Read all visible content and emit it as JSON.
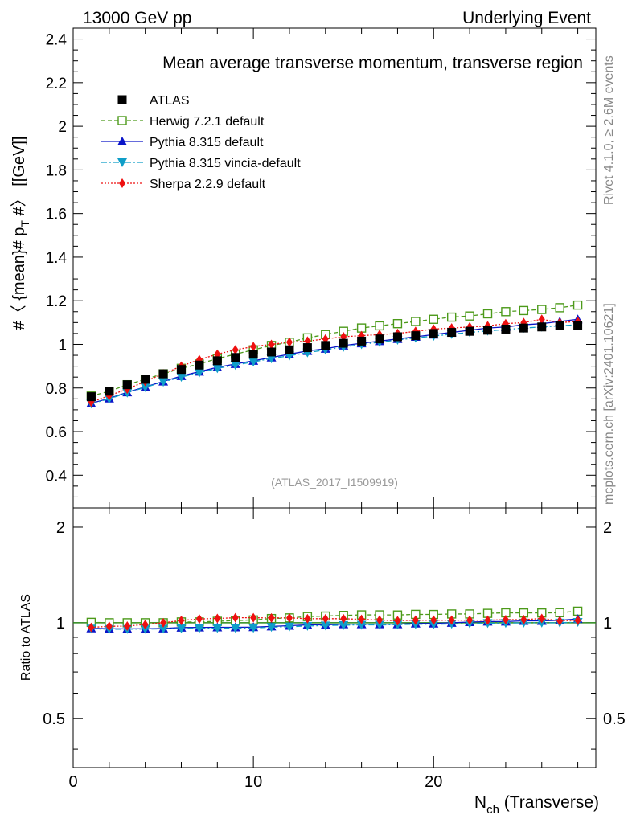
{
  "header": {
    "left": "13000 GeV pp",
    "right": "Underlying Event"
  },
  "side": {
    "rivet": "Rivet 4.1.0, ≥ 2.6M events",
    "mcplots": "mcplots.cern.ch [arXiv:2401.10621]"
  },
  "chart_data": {
    "type": "line",
    "title": "Mean average transverse momentum, transverse region",
    "analysis_id": "(ATLAS_2017_I1509919)",
    "ylabel": "#〈 {mean}# p_T #〉 [[GeV]]",
    "ylabel_parts": {
      "pre": "#〈 {mean}# p",
      "sub": "T",
      "post": " #〉 [[GeV]]"
    },
    "xlabel_parts": {
      "pre": "N",
      "sub": "ch",
      "post": " (Transverse)"
    },
    "ratio_ylabel": "Ratio to ATLAS",
    "xlim": [
      0,
      29
    ],
    "ylim": [
      0.25,
      2.45
    ],
    "ratio_ylim": [
      0.35,
      2.3
    ],
    "x_ticks": [
      "0",
      "10",
      "20"
    ],
    "y_ticks": [
      "0.4",
      "0.6",
      "0.8",
      "1",
      "1.2",
      "1.4",
      "1.6",
      "1.8",
      "2",
      "2.2",
      "2.4"
    ],
    "ratio_ticks": [
      "0.5",
      "1",
      "2"
    ],
    "x": [
      1,
      2,
      3,
      4,
      5,
      6,
      7,
      8,
      9,
      10,
      11,
      12,
      13,
      14,
      15,
      16,
      17,
      18,
      19,
      20,
      21,
      22,
      23,
      24,
      25,
      26,
      27,
      28
    ],
    "series": [
      {
        "name": "ATLAS",
        "color": "#000000",
        "marker": "square-filled",
        "line": "none",
        "values": [
          0.76,
          0.785,
          0.815,
          0.84,
          0.865,
          0.885,
          0.905,
          0.925,
          0.94,
          0.955,
          0.965,
          0.975,
          0.985,
          0.995,
          1.005,
          1.015,
          1.025,
          1.035,
          1.04,
          1.05,
          1.055,
          1.06,
          1.065,
          1.07,
          1.075,
          1.08,
          1.085,
          1.085
        ]
      },
      {
        "name": "Herwig 7.2.1 default",
        "color": "#4c9a1a",
        "marker": "square-open",
        "line": "dashed",
        "values": [
          0.763,
          0.785,
          0.815,
          0.84,
          0.865,
          0.89,
          0.91,
          0.935,
          0.955,
          0.975,
          0.995,
          1.01,
          1.03,
          1.045,
          1.06,
          1.075,
          1.085,
          1.095,
          1.105,
          1.115,
          1.125,
          1.13,
          1.14,
          1.15,
          1.155,
          1.16,
          1.168,
          1.18
        ],
        "ratio": [
          1.003,
          1.0,
          1.0,
          1.0,
          1.0,
          1.006,
          1.006,
          1.011,
          1.016,
          1.021,
          1.031,
          1.036,
          1.046,
          1.05,
          1.055,
          1.059,
          1.059,
          1.058,
          1.063,
          1.062,
          1.066,
          1.066,
          1.071,
          1.075,
          1.074,
          1.074,
          1.076,
          1.088
        ]
      },
      {
        "name": "Pythia 8.315 default",
        "color": "#0a14c8",
        "marker": "triangle-up",
        "line": "solid",
        "values": [
          0.73,
          0.752,
          0.78,
          0.805,
          0.83,
          0.855,
          0.875,
          0.895,
          0.91,
          0.925,
          0.94,
          0.955,
          0.97,
          0.98,
          0.995,
          1.005,
          1.015,
          1.025,
          1.035,
          1.045,
          1.055,
          1.065,
          1.075,
          1.08,
          1.09,
          1.095,
          1.105,
          1.115
        ],
        "ratio": [
          0.961,
          0.958,
          0.957,
          0.958,
          0.96,
          0.966,
          0.967,
          0.968,
          0.968,
          0.969,
          0.974,
          0.979,
          0.985,
          0.985,
          0.99,
          0.99,
          0.99,
          0.99,
          0.995,
          0.995,
          1.0,
          1.005,
          1.009,
          1.009,
          1.014,
          1.014,
          1.018,
          1.028
        ]
      },
      {
        "name": "Pythia 8.315 vincia-default",
        "color": "#0f9ec8",
        "marker": "triangle-down",
        "line": "dashdot",
        "values": [
          0.728,
          0.75,
          0.778,
          0.803,
          0.828,
          0.85,
          0.87,
          0.89,
          0.905,
          0.92,
          0.935,
          0.948,
          0.962,
          0.975,
          0.988,
          1.0,
          1.01,
          1.02,
          1.03,
          1.038,
          1.047,
          1.055,
          1.062,
          1.068,
          1.075,
          1.08,
          1.085,
          1.09
        ],
        "ratio": [
          0.958,
          0.955,
          0.955,
          0.956,
          0.957,
          0.96,
          0.961,
          0.962,
          0.963,
          0.963,
          0.969,
          0.972,
          0.977,
          0.98,
          0.983,
          0.985,
          0.985,
          0.986,
          0.99,
          0.989,
          0.992,
          0.995,
          0.997,
          0.998,
          1.0,
          1.0,
          1.0,
          1.005
        ]
      },
      {
        "name": "Sherpa 2.2.9 default",
        "color": "#ee1010",
        "marker": "diamond",
        "line": "dotted",
        "values": [
          0.735,
          0.765,
          0.795,
          0.83,
          0.865,
          0.9,
          0.93,
          0.955,
          0.975,
          0.99,
          1.0,
          1.01,
          1.015,
          1.025,
          1.035,
          1.04,
          1.045,
          1.05,
          1.06,
          1.07,
          1.075,
          1.08,
          1.085,
          1.095,
          1.1,
          1.115,
          1.1,
          1.105
        ],
        "ratio": [
          0.967,
          0.975,
          0.976,
          0.988,
          1.0,
          1.017,
          1.028,
          1.032,
          1.037,
          1.037,
          1.036,
          1.036,
          1.03,
          1.03,
          1.03,
          1.025,
          1.02,
          1.015,
          1.019,
          1.019,
          1.019,
          1.019,
          1.019,
          1.023,
          1.023,
          1.032,
          1.014,
          1.018
        ]
      }
    ]
  }
}
